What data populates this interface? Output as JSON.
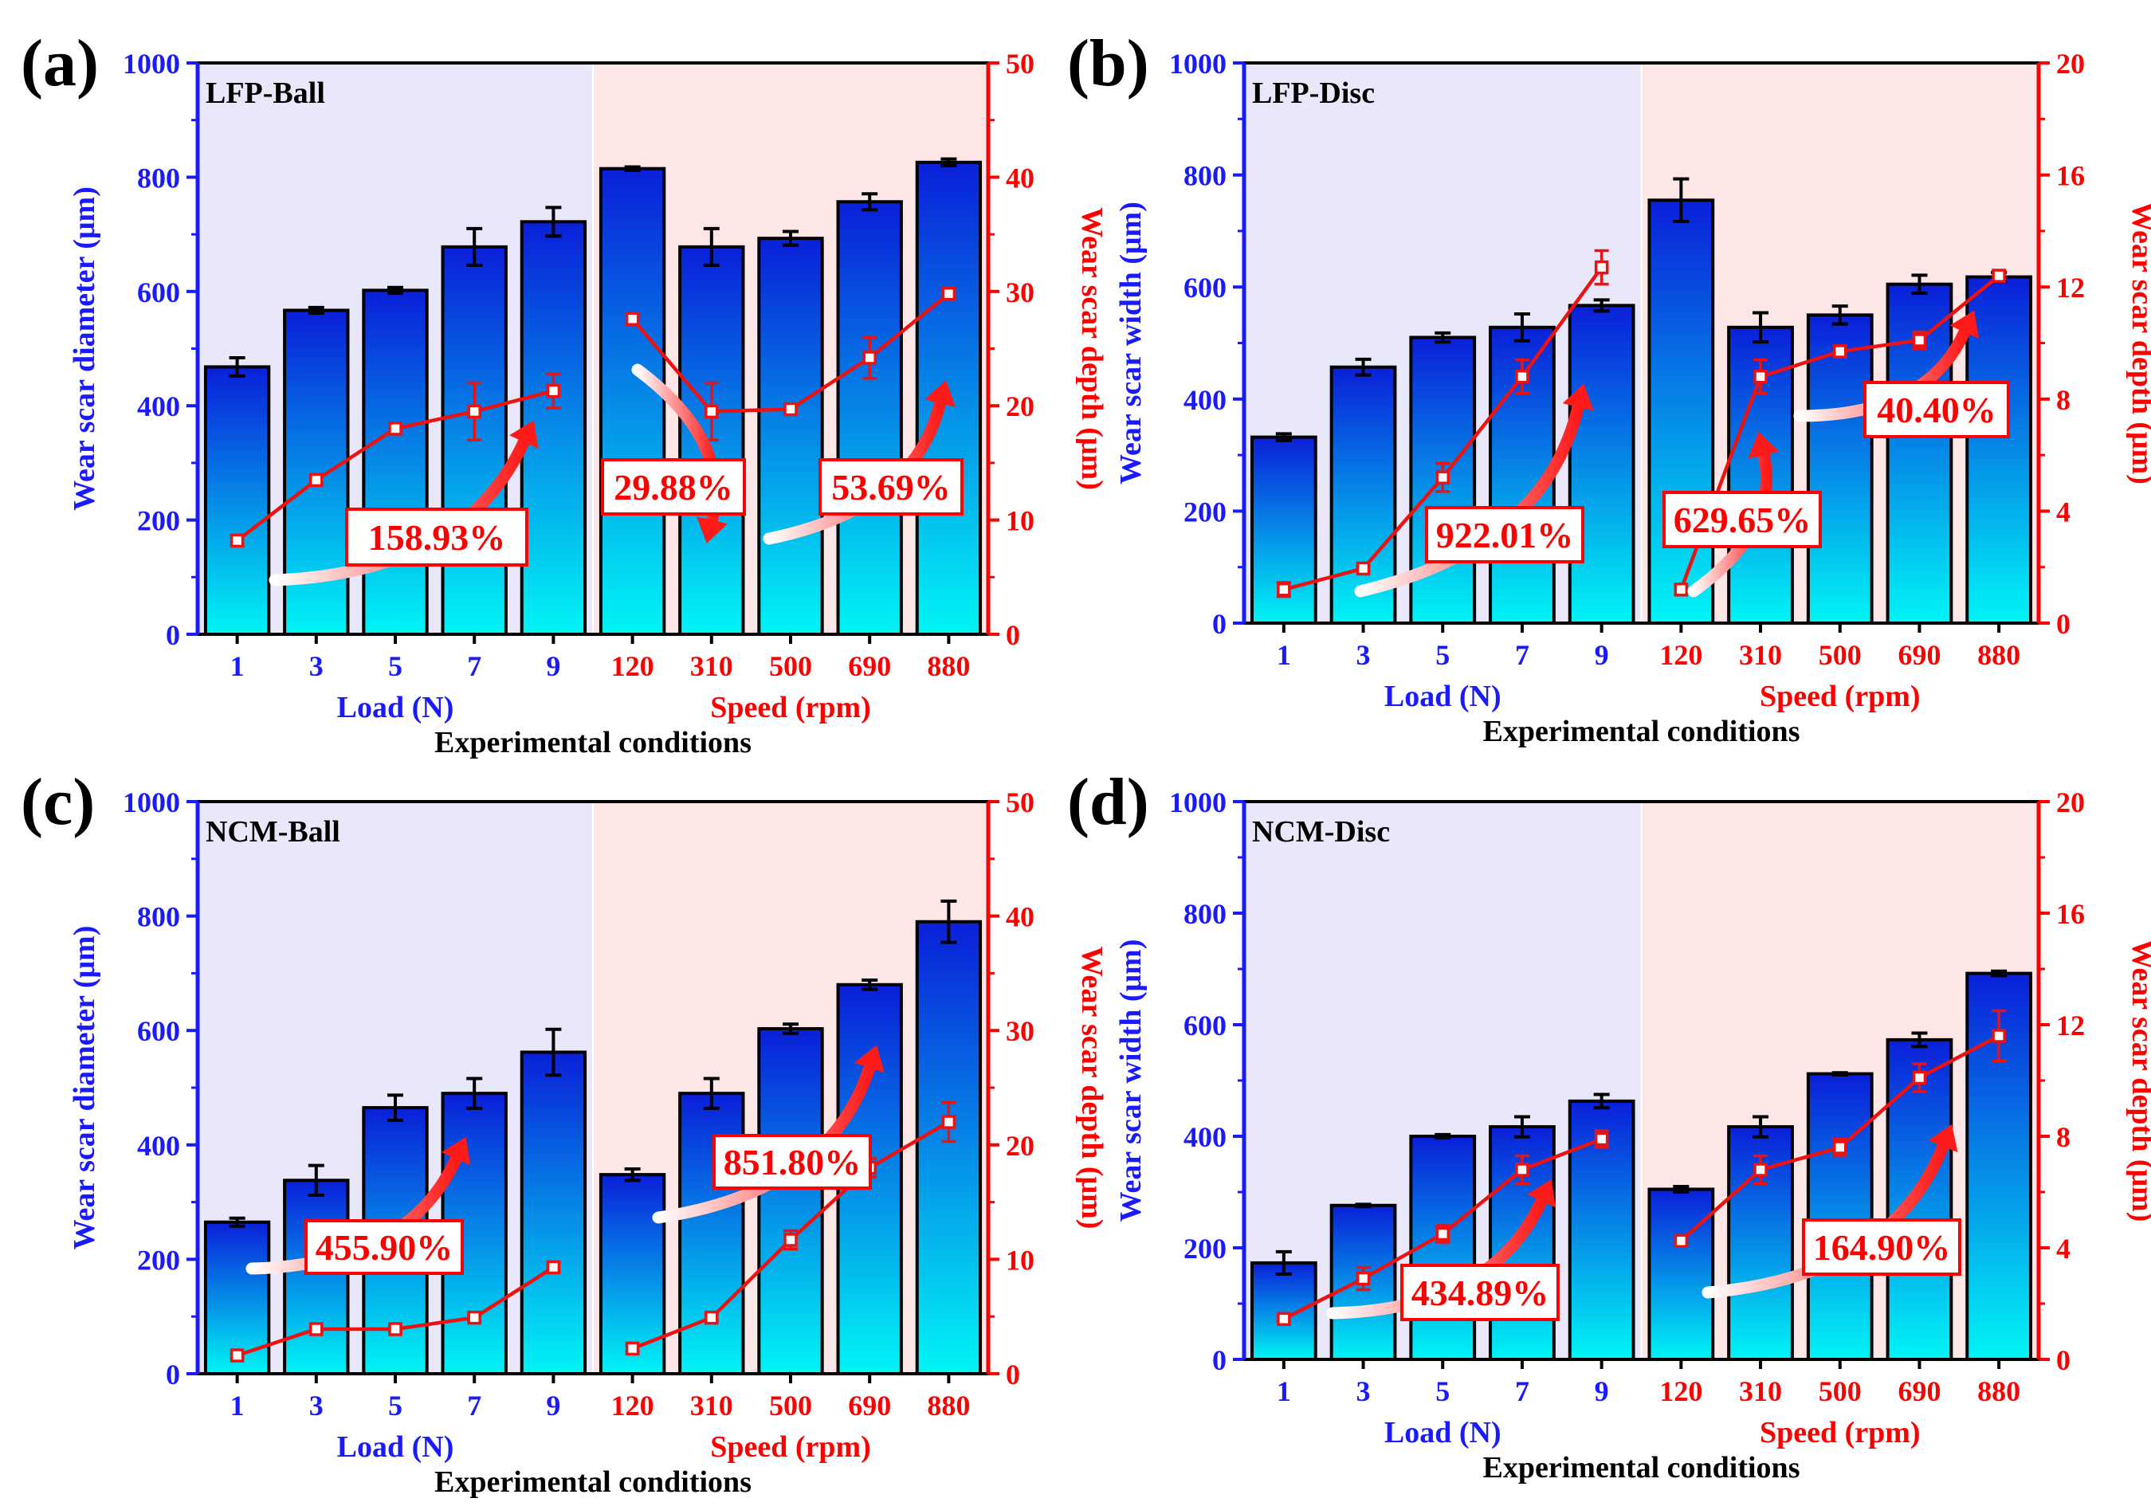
{
  "colors": {
    "left_axis": "#1a1aff",
    "right_axis": "#ff0000",
    "bar_top": "#0a1fd9",
    "bar_bottom": "#00f5f5",
    "load_bg": "#e8e8fa",
    "speed_bg": "#fde6e6",
    "line": "#ee1111"
  },
  "chart_data": [
    {
      "type": "bar",
      "panel_label": "(a)",
      "inset_label": "LFP-Ball",
      "categories": [
        "1",
        "3",
        "5",
        "7",
        "9",
        "120",
        "310",
        "500",
        "690",
        "880"
      ],
      "group_labels": [
        "Load (N)",
        "Speed (rpm)"
      ],
      "xlabel": "Experimental conditions",
      "ylabel_left": "Wear scar diameter (μm)",
      "ylabel_right": "Wear scar depth (μm)",
      "ylim_left": [
        0,
        1000
      ],
      "yticks_left": [
        "0",
        "200",
        "400",
        "600",
        "800",
        "1000"
      ],
      "ylim_right": [
        0,
        50
      ],
      "yticks_right": [
        "0",
        "10",
        "20",
        "30",
        "40",
        "50"
      ],
      "series": [
        {
          "name": "Wear scar diameter",
          "axis": "left",
          "kind": "bar",
          "values": [
            468,
            567,
            602,
            678,
            722,
            815,
            678,
            693,
            757,
            826
          ],
          "errors": [
            16,
            5,
            5,
            32,
            25,
            3,
            32,
            12,
            14,
            6
          ]
        },
        {
          "name": "Wear scar depth",
          "axis": "right",
          "kind": "line",
          "values": [
            8.2,
            13.5,
            18.0,
            19.5,
            21.3,
            27.6,
            19.5,
            19.7,
            24.2,
            29.8
          ],
          "errors": [
            0.4,
            0.3,
            0.3,
            2.5,
            1.5,
            0.5,
            2.5,
            0.3,
            1.8,
            0.3
          ]
        }
      ],
      "annotations": [
        "158.93%",
        "29.88%",
        "53.69%"
      ]
    },
    {
      "type": "bar",
      "panel_label": "(b)",
      "inset_label": "LFP-Disc",
      "categories": [
        "1",
        "3",
        "5",
        "7",
        "9",
        "120",
        "310",
        "500",
        "690",
        "880"
      ],
      "group_labels": [
        "Load (N)",
        "Speed (rpm)"
      ],
      "xlabel": "Experimental conditions",
      "ylabel_left": "Wear scar width (μm)",
      "ylabel_right": "Wear scar depth (μm)",
      "ylim_left": [
        0,
        1000
      ],
      "yticks_left": [
        "0",
        "200",
        "400",
        "600",
        "800",
        "1000"
      ],
      "ylim_right": [
        0,
        20
      ],
      "yticks_right": [
        "0",
        "4",
        "8",
        "12",
        "16",
        "20"
      ],
      "series": [
        {
          "name": "Wear scar width",
          "axis": "left",
          "kind": "bar",
          "values": [
            332,
            457,
            510,
            528,
            567,
            755,
            528,
            550,
            605,
            618
          ],
          "errors": [
            6,
            14,
            8,
            24,
            10,
            38,
            26,
            16,
            16,
            8
          ]
        },
        {
          "name": "Wear scar depth",
          "axis": "right",
          "kind": "line",
          "values": [
            1.2,
            1.95,
            5.2,
            8.8,
            12.7,
            1.2,
            8.8,
            9.7,
            10.1,
            12.4
          ],
          "errors": [
            0.25,
            0.1,
            0.5,
            0.6,
            0.6,
            0.15,
            0.6,
            0.2,
            0.3,
            0.2
          ]
        }
      ],
      "annotations": [
        "922.01%",
        "629.65%",
        "40.40%"
      ]
    },
    {
      "type": "bar",
      "panel_label": "(c)",
      "inset_label": "NCM-Ball",
      "categories": [
        "1",
        "3",
        "5",
        "7",
        "9",
        "120",
        "310",
        "500",
        "690",
        "880"
      ],
      "group_labels": [
        "Load (N)",
        "Speed (rpm)"
      ],
      "xlabel": "Experimental conditions",
      "ylabel_left": "Wear scar diameter (μm)",
      "ylabel_right": "Wear scar depth (μm)",
      "ylim_left": [
        0,
        1000
      ],
      "yticks_left": [
        "0",
        "200",
        "400",
        "600",
        "800",
        "1000"
      ],
      "ylim_right": [
        0,
        50
      ],
      "yticks_right": [
        "0",
        "10",
        "20",
        "30",
        "40",
        "50"
      ],
      "series": [
        {
          "name": "Wear scar diameter",
          "axis": "left",
          "kind": "bar",
          "values": [
            265,
            338,
            465,
            490,
            562,
            348,
            490,
            603,
            680,
            790
          ],
          "errors": [
            7,
            26,
            22,
            26,
            40,
            10,
            26,
            8,
            8,
            36
          ]
        },
        {
          "name": "Wear scar depth",
          "axis": "right",
          "kind": "line",
          "values": [
            1.6,
            3.9,
            3.9,
            4.9,
            9.3,
            2.2,
            4.9,
            11.7,
            18.0,
            22.0
          ],
          "errors": [
            0.2,
            0.2,
            0.2,
            0.3,
            0.4,
            0.3,
            0.3,
            0.8,
            0.8,
            1.7
          ]
        }
      ],
      "annotations": [
        "455.90%",
        "851.80%"
      ]
    },
    {
      "type": "bar",
      "panel_label": "(d)",
      "inset_label": "NCM-Disc",
      "categories": [
        "1",
        "3",
        "5",
        "7",
        "9",
        "120",
        "310",
        "500",
        "690",
        "880"
      ],
      "group_labels": [
        "Load (N)",
        "Speed (rpm)"
      ],
      "xlabel": "Experimental conditions",
      "ylabel_left": "Wear scar width (μm)",
      "ylabel_right": "Wear scar depth (μm)",
      "ylim_left": [
        0,
        1000
      ],
      "yticks_left": [
        "0",
        "200",
        "400",
        "600",
        "800",
        "1000"
      ],
      "ylim_right": [
        0,
        20
      ],
      "yticks_right": [
        "0",
        "4",
        "8",
        "12",
        "16",
        "20"
      ],
      "series": [
        {
          "name": "Wear scar width",
          "axis": "left",
          "kind": "bar",
          "values": [
            173,
            276,
            400,
            417,
            463,
            305,
            417,
            512,
            573,
            692
          ],
          "errors": [
            20,
            2,
            3,
            18,
            12,
            5,
            18,
            2,
            12,
            4
          ]
        },
        {
          "name": "Wear scar depth",
          "axis": "right",
          "kind": "line",
          "values": [
            1.45,
            2.9,
            4.5,
            6.8,
            7.9,
            4.25,
            6.8,
            7.6,
            10.1,
            11.6
          ],
          "errors": [
            0.1,
            0.4,
            0.3,
            0.5,
            0.3,
            0.1,
            0.5,
            0.3,
            0.5,
            0.9
          ]
        }
      ],
      "annotations": [
        "434.89%",
        "164.90%"
      ]
    }
  ]
}
